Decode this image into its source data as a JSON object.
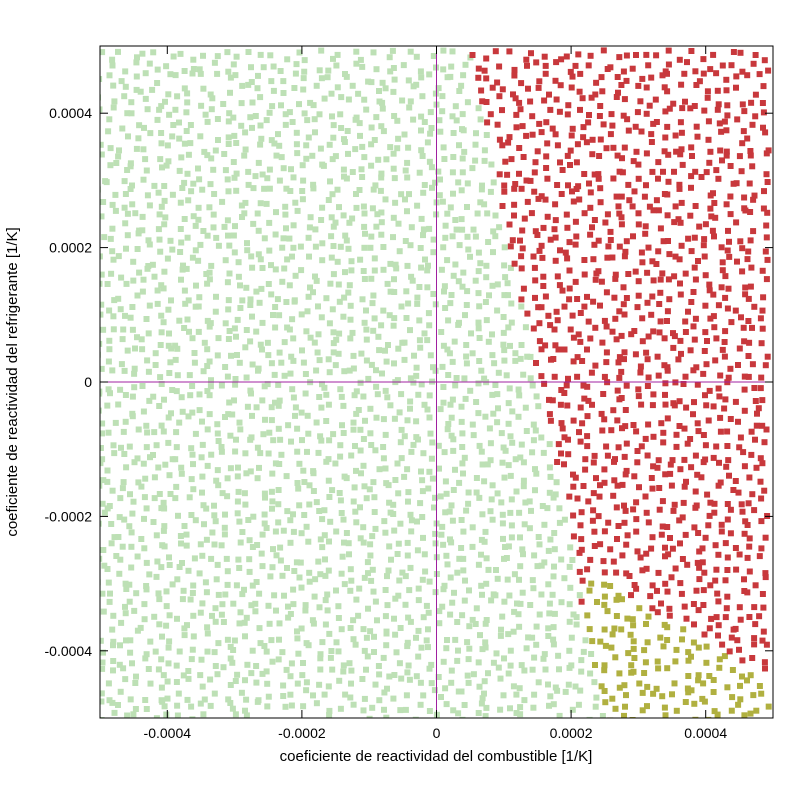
{
  "chart_data": {
    "type": "scatter",
    "title": "",
    "xlabel": "coeficiente de reactividad del combustible [1/K]",
    "ylabel": "coeficiente de reactividad del refrigerante [1/K]",
    "xlim": [
      -0.0005,
      0.0005
    ],
    "ylim": [
      -0.0005,
      0.0005
    ],
    "x_ticks": [
      {
        "value": -0.0004,
        "label": "-0.0004"
      },
      {
        "value": -0.0002,
        "label": "-0.0002"
      },
      {
        "value": 0,
        "label": "0"
      },
      {
        "value": 0.0002,
        "label": "0.0002"
      },
      {
        "value": 0.0004,
        "label": "0.0004"
      }
    ],
    "y_ticks": [
      {
        "value": -0.0004,
        "label": "-0.0004"
      },
      {
        "value": -0.0002,
        "label": "-0.0002"
      },
      {
        "value": 0,
        "label": "0"
      },
      {
        "value": 0.0002,
        "label": "0.0002"
      },
      {
        "value": 0.0004,
        "label": "0.0004"
      }
    ],
    "zero_lines": {
      "color": "#a020a0"
    },
    "grid": false,
    "legend": "none",
    "series_colors": [
      "#bde0b5",
      "#c8383c",
      "#b0b040"
    ],
    "regions": {
      "description_boundary_red_vs_green": "red where x > 0.00015 - 0.18 * y (approximately)",
      "red_boundary_points": [
        [
          5e-05,
          0.0005
        ],
        [
          0.00015,
          0.0
        ],
        [
          0.00022,
          -0.00025
        ],
        [
          0.00032,
          -0.00035
        ]
      ],
      "olive_region": "bottom-right corner below about y = -0.00025 and x > 0.00022"
    },
    "point_grid_spacing": 1.7e-05,
    "marker": "square"
  }
}
